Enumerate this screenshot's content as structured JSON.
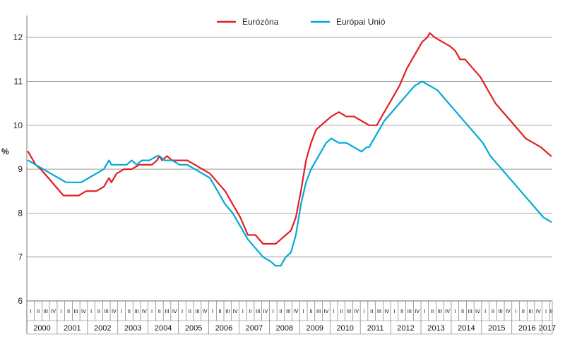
{
  "chart_data": {
    "type": "line",
    "ylabel": "%",
    "ylim": [
      6,
      12.5
    ],
    "yticks": [
      6,
      7,
      8,
      9,
      10,
      11,
      12
    ],
    "grid": "horizontal",
    "legend_position": "top-center",
    "quarter_labels": [
      "I",
      "II",
      "III",
      "IV"
    ],
    "years": [
      "2000",
      "2001",
      "2002",
      "2003",
      "2004",
      "2005",
      "2006",
      "2007",
      "2008",
      "2009",
      "2010",
      "2011",
      "2012",
      "2013",
      "2014",
      "2015",
      "2016",
      "2017"
    ],
    "x_start": "2000-01",
    "x_end": "2017-04",
    "series": [
      {
        "name": "Eurózóna",
        "color": "#e31e24",
        "x": [
          "2000-01",
          "2000-02",
          "2000-04",
          "2000-06",
          "2000-09",
          "2000-12",
          "2001-03",
          "2001-06",
          "2001-09",
          "2001-12",
          "2002-01",
          "2002-04",
          "2002-07",
          "2002-09",
          "2002-10",
          "2002-12",
          "2003-03",
          "2003-06",
          "2003-09",
          "2003-12",
          "2004-02",
          "2004-04",
          "2004-05",
          "2004-06",
          "2004-08",
          "2004-10",
          "2005-01",
          "2005-04",
          "2005-07",
          "2005-10",
          "2006-01",
          "2006-04",
          "2006-07",
          "2006-10",
          "2007-01",
          "2007-04",
          "2007-07",
          "2007-10",
          "2008-01",
          "2008-03",
          "2008-05",
          "2008-07",
          "2008-09",
          "2008-11",
          "2009-01",
          "2009-03",
          "2009-05",
          "2009-07",
          "2009-09",
          "2009-11",
          "2010-01",
          "2010-04",
          "2010-07",
          "2010-10",
          "2011-01",
          "2011-04",
          "2011-07",
          "2011-10",
          "2012-01",
          "2012-04",
          "2012-07",
          "2012-10",
          "2013-01",
          "2013-03",
          "2013-04",
          "2013-06",
          "2013-09",
          "2013-12",
          "2014-02",
          "2014-03",
          "2014-04",
          "2014-06",
          "2014-09",
          "2014-12",
          "2015-03",
          "2015-06",
          "2015-09",
          "2015-12",
          "2016-03",
          "2016-06",
          "2016-09",
          "2016-12",
          "2017-02",
          "2017-04"
        ],
        "values": [
          9.4,
          9.3,
          9.1,
          9.0,
          8.8,
          8.6,
          8.4,
          8.4,
          8.4,
          8.5,
          8.5,
          8.5,
          8.6,
          8.8,
          8.7,
          8.9,
          9.0,
          9.0,
          9.1,
          9.1,
          9.1,
          9.2,
          9.3,
          9.2,
          9.3,
          9.2,
          9.2,
          9.2,
          9.1,
          9.0,
          8.9,
          8.7,
          8.5,
          8.2,
          7.9,
          7.5,
          7.5,
          7.3,
          7.3,
          7.3,
          7.4,
          7.5,
          7.6,
          7.9,
          8.5,
          9.2,
          9.6,
          9.9,
          10.0,
          10.1,
          10.2,
          10.3,
          10.2,
          10.2,
          10.1,
          10.0,
          10.0,
          10.3,
          10.6,
          10.9,
          11.3,
          11.6,
          11.9,
          12.0,
          12.1,
          12.0,
          11.9,
          11.8,
          11.7,
          11.6,
          11.5,
          11.5,
          11.3,
          11.1,
          10.8,
          10.5,
          10.3,
          10.1,
          9.9,
          9.7,
          9.6,
          9.5,
          9.4,
          9.3
        ]
      },
      {
        "name": "Európai Unió",
        "color": "#00aad4",
        "x": [
          "2000-01",
          "2000-04",
          "2000-07",
          "2000-10",
          "2001-01",
          "2001-04",
          "2001-07",
          "2001-10",
          "2002-01",
          "2002-04",
          "2002-07",
          "2002-09",
          "2002-10",
          "2003-01",
          "2003-04",
          "2003-06",
          "2003-08",
          "2003-10",
          "2004-01",
          "2004-04",
          "2004-05",
          "2004-07",
          "2004-10",
          "2005-01",
          "2005-04",
          "2005-07",
          "2005-10",
          "2006-01",
          "2006-04",
          "2006-07",
          "2006-10",
          "2007-01",
          "2007-04",
          "2007-07",
          "2007-10",
          "2008-01",
          "2008-03",
          "2008-05",
          "2008-07",
          "2008-09",
          "2008-11",
          "2009-01",
          "2009-03",
          "2009-05",
          "2009-07",
          "2009-09",
          "2009-11",
          "2010-01",
          "2010-04",
          "2010-07",
          "2010-10",
          "2011-01",
          "2011-03",
          "2011-04",
          "2011-07",
          "2011-10",
          "2012-01",
          "2012-04",
          "2012-07",
          "2012-10",
          "2013-01",
          "2013-04",
          "2013-07",
          "2013-10",
          "2014-01",
          "2014-04",
          "2014-07",
          "2014-10",
          "2015-01",
          "2015-04",
          "2015-07",
          "2015-10",
          "2016-01",
          "2016-04",
          "2016-07",
          "2016-10",
          "2017-01",
          "2017-04"
        ],
        "values": [
          9.2,
          9.1,
          9.0,
          8.9,
          8.8,
          8.7,
          8.7,
          8.7,
          8.8,
          8.9,
          9.0,
          9.2,
          9.1,
          9.1,
          9.1,
          9.2,
          9.1,
          9.2,
          9.2,
          9.3,
          9.3,
          9.2,
          9.2,
          9.1,
          9.1,
          9.0,
          8.9,
          8.8,
          8.5,
          8.2,
          8.0,
          7.7,
          7.4,
          7.2,
          7.0,
          6.9,
          6.8,
          6.8,
          7.0,
          7.1,
          7.5,
          8.2,
          8.7,
          9.0,
          9.2,
          9.4,
          9.6,
          9.7,
          9.6,
          9.6,
          9.5,
          9.4,
          9.5,
          9.5,
          9.8,
          10.1,
          10.3,
          10.5,
          10.7,
          10.9,
          11.0,
          10.9,
          10.8,
          10.6,
          10.4,
          10.2,
          10.0,
          9.8,
          9.6,
          9.3,
          9.1,
          8.9,
          8.7,
          8.5,
          8.3,
          8.1,
          7.9,
          7.8
        ]
      }
    ]
  }
}
